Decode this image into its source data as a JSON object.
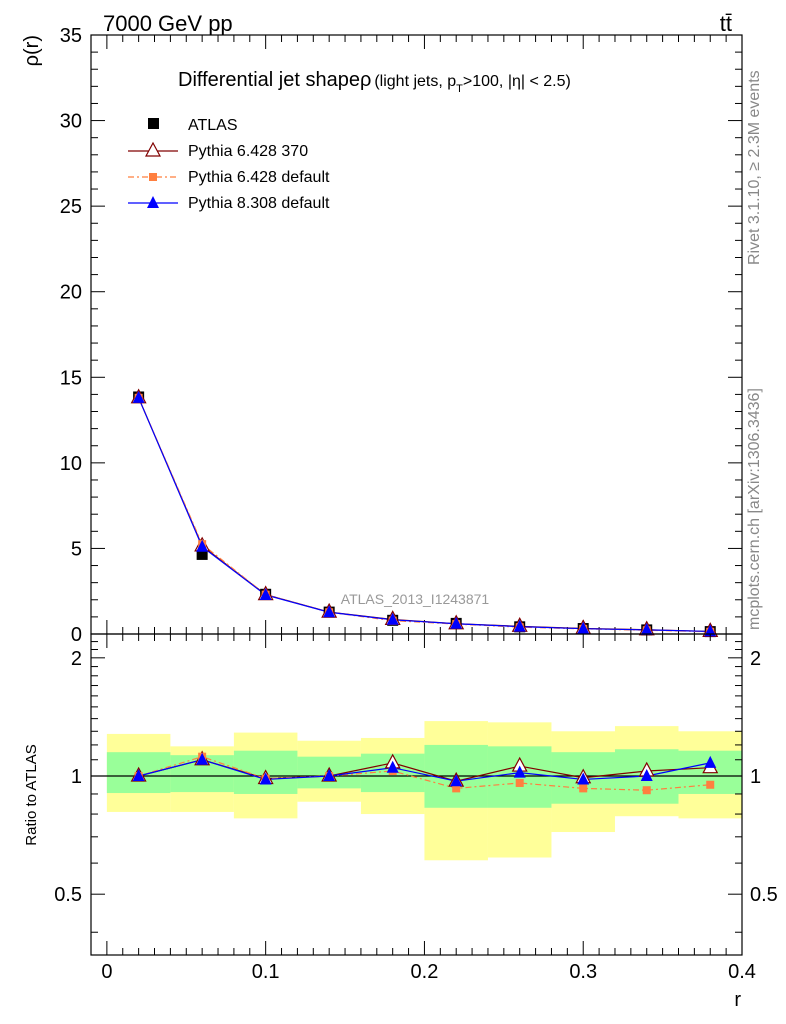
{
  "header": {
    "left": "7000 GeV pp",
    "right": "tt̄"
  },
  "side_labels": {
    "rivet": "Rivet 3.1.10, ≥ 2.3M events",
    "mcplots": "mcplots.cern.ch [arXiv:1306.3436]"
  },
  "main": {
    "title_main": "Differential jet shapeρ",
    "title_sub_prefix": "(light jets, p",
    "title_sub_subscript": "T",
    "title_sub_suffix": ">100, |η| < 2.5)",
    "ylabel": "ρ(r)",
    "watermark": "ATLAS_2013_I1243871"
  },
  "ratio": {
    "ylabel": "Ratio to ATLAS"
  },
  "xaxis_label": "r",
  "legend": [
    "ATLAS",
    "Pythia 6.428 370",
    "Pythia 6.428 default",
    "Pythia 8.308 default"
  ],
  "colors": {
    "atlas": "#000000",
    "p6_370": "#800000",
    "p6_default": "#ff7f3f",
    "p8_default": "#0000ff",
    "band_inner": "#99ff99",
    "band_outer": "#ffff99"
  },
  "chart_data": {
    "type": "line",
    "x": [
      0.02,
      0.06,
      0.1,
      0.14,
      0.18,
      0.22,
      0.26,
      0.3,
      0.34,
      0.38
    ],
    "bin_edges": [
      0.0,
      0.04,
      0.08,
      0.12,
      0.16,
      0.2,
      0.24,
      0.28,
      0.32,
      0.36,
      0.4
    ],
    "xlim": [
      -0.01,
      0.4
    ],
    "ylim": [
      0,
      35
    ],
    "xticks": [
      "0",
      "0.1",
      "0.2",
      "0.3",
      "0.4"
    ],
    "yticks": [
      "0",
      "5",
      "10",
      "15",
      "20",
      "25",
      "30",
      "35"
    ],
    "series": [
      {
        "name": "ATLAS",
        "key": "atlas",
        "values": [
          13.85,
          4.65,
          2.32,
          1.28,
          0.8,
          0.62,
          0.42,
          0.32,
          0.24,
          0.14
        ]
      },
      {
        "name": "Pythia 6.428 370",
        "key": "p6_370",
        "values": [
          13.8,
          5.15,
          2.3,
          1.28,
          0.85,
          0.6,
          0.45,
          0.32,
          0.25,
          0.15
        ]
      },
      {
        "name": "Pythia 6.428 default",
        "key": "p6_default",
        "values": [
          13.8,
          5.25,
          2.3,
          1.27,
          0.78,
          0.58,
          0.4,
          0.3,
          0.22,
          0.13
        ]
      },
      {
        "name": "Pythia 8.308 default",
        "key": "p8_default",
        "values": [
          13.8,
          5.1,
          2.28,
          1.27,
          0.83,
          0.6,
          0.43,
          0.31,
          0.24,
          0.15
        ]
      }
    ],
    "ratio": {
      "ylim": [
        0.35,
        2.3
      ],
      "scale": "log",
      "yticks": [
        "0.5",
        "1",
        "2"
      ],
      "series": [
        {
          "key": "p6_370",
          "values": [
            1.0,
            1.1,
            0.985,
            1.0,
            1.08,
            0.97,
            1.06,
            0.99,
            1.03,
            1.05
          ]
        },
        {
          "key": "p6_default",
          "values": [
            1.0,
            1.12,
            0.985,
            1.0,
            1.03,
            0.93,
            0.96,
            0.93,
            0.92,
            0.95
          ]
        },
        {
          "key": "p8_default",
          "values": [
            1.0,
            1.1,
            0.98,
            1.0,
            1.05,
            0.97,
            1.02,
            0.98,
            1.0,
            1.08
          ]
        }
      ],
      "band_inner": [
        [
          0.905,
          1.15
        ],
        [
          0.91,
          1.13
        ],
        [
          0.9,
          1.16
        ],
        [
          0.93,
          1.12
        ],
        [
          0.91,
          1.14
        ],
        [
          0.83,
          1.2
        ],
        [
          0.83,
          1.19
        ],
        [
          0.85,
          1.15
        ],
        [
          0.85,
          1.17
        ],
        [
          0.9,
          1.16
        ]
      ],
      "band_outer": [
        [
          0.81,
          1.28
        ],
        [
          0.81,
          1.19
        ],
        [
          0.78,
          1.29
        ],
        [
          0.86,
          1.23
        ],
        [
          0.8,
          1.25
        ],
        [
          0.61,
          1.38
        ],
        [
          0.62,
          1.37
        ],
        [
          0.72,
          1.3
        ],
        [
          0.79,
          1.34
        ],
        [
          0.78,
          1.3
        ]
      ]
    }
  }
}
